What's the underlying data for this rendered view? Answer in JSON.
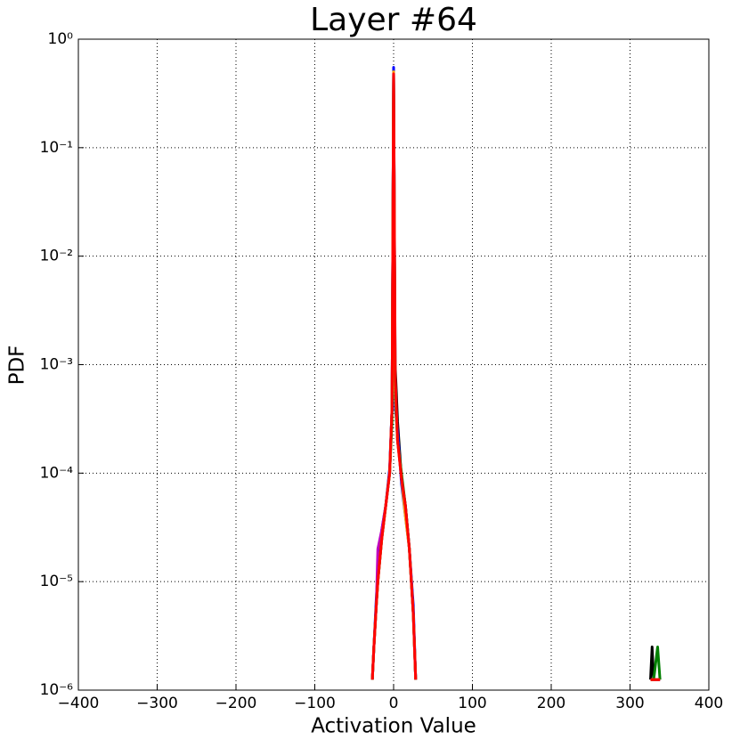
{
  "chart_data": {
    "type": "line",
    "title": "Layer #64",
    "xlabel": "Activation Value",
    "ylabel": "PDF",
    "log_y": true,
    "grid": true,
    "xlim": [
      -400,
      400
    ],
    "xticks": [
      {
        "value": -400,
        "label": "−400"
      },
      {
        "value": -300,
        "label": "−300"
      },
      {
        "value": -200,
        "label": "−200"
      },
      {
        "value": -100,
        "label": "−100"
      },
      0,
      100,
      200,
      300,
      400
    ],
    "ylim": [
      1e-06,
      1
    ],
    "yticks": [
      {
        "value": 1e-06,
        "label": "10⁻⁶"
      },
      {
        "value": 1e-05,
        "label": "10⁻⁵"
      },
      {
        "value": 0.0001,
        "label": "10⁻⁴"
      },
      {
        "value": 0.001,
        "label": "10⁻³"
      },
      {
        "value": 0.01,
        "label": "10⁻²"
      },
      {
        "value": 0.1,
        "label": "10⁻¹"
      },
      {
        "value": 1,
        "label": "10⁰"
      }
    ],
    "x": [
      -27,
      -25,
      -22,
      -20,
      -15,
      -10,
      -5,
      -2,
      0,
      2,
      5,
      10,
      15,
      20,
      25,
      28,
      100,
      326,
      328,
      330,
      335,
      338
    ],
    "series": [
      {
        "color": "#000000",
        "values": [
          1.25e-06,
          2.5e-06,
          6e-06,
          1e-05,
          2.5e-05,
          5e-05,
          0.0001,
          0.0004,
          0.5,
          0.001,
          0.0003,
          9e-05,
          5e-05,
          2e-05,
          5e-06,
          1.25e-06,
          null,
          1.25e-06,
          2.5e-06,
          1.25e-06,
          1.25e-06,
          1.25e-06
        ]
      },
      {
        "color": "#0000ff",
        "values": [
          1.25e-06,
          2.5e-06,
          7e-06,
          1.2e-05,
          3e-05,
          5e-05,
          0.00011,
          0.0004,
          0.55,
          0.0004,
          0.00025,
          8e-05,
          4e-05,
          2e-05,
          6e-06,
          1.25e-06,
          null,
          1.25e-06,
          1.25e-06,
          1.25e-06,
          1.25e-06,
          1.25e-06
        ]
      },
      {
        "color": "#bf00bf",
        "values": [
          1.25e-06,
          2.5e-06,
          6e-06,
          2e-05,
          3e-05,
          5e-05,
          0.0001,
          0.0004,
          0.5,
          0.0007,
          0.0002,
          9e-05,
          5e-05,
          2e-05,
          5e-06,
          1.25e-06,
          null,
          1.25e-06,
          1.25e-06,
          1.25e-06,
          1.25e-06,
          1.25e-06
        ]
      },
      {
        "color": "#008000",
        "values": [
          1.25e-06,
          2.5e-06,
          6e-06,
          1e-05,
          2.5e-05,
          5e-05,
          0.0001,
          0.0003,
          0.5,
          0.0005,
          0.0002,
          0.0001,
          5e-05,
          2e-05,
          5e-06,
          1.25e-06,
          null,
          1.25e-06,
          1.25e-06,
          1.25e-06,
          2.5e-06,
          1.25e-06
        ]
      },
      {
        "color": "#ffa500",
        "values": [
          1.25e-06,
          2.5e-06,
          6e-06,
          1e-05,
          2.5e-05,
          5e-05,
          0.0001,
          0.0004,
          0.5,
          0.0006,
          0.0002,
          9e-05,
          4e-05,
          2e-05,
          5e-06,
          1.25e-06,
          null,
          1.25e-06,
          1.25e-06,
          1.25e-06,
          1.25e-06,
          1.25e-06
        ]
      },
      {
        "color": "#ff0000",
        "values": [
          1.25e-06,
          2.5e-06,
          6e-06,
          1e-05,
          2.5e-05,
          5e-05,
          0.0001,
          0.0004,
          0.48,
          0.0008,
          0.0002,
          9e-05,
          5e-05,
          2e-05,
          5e-06,
          1.25e-06,
          null,
          1.25e-06,
          1.25e-06,
          1.25e-06,
          1.25e-06,
          1.25e-06
        ]
      }
    ]
  }
}
